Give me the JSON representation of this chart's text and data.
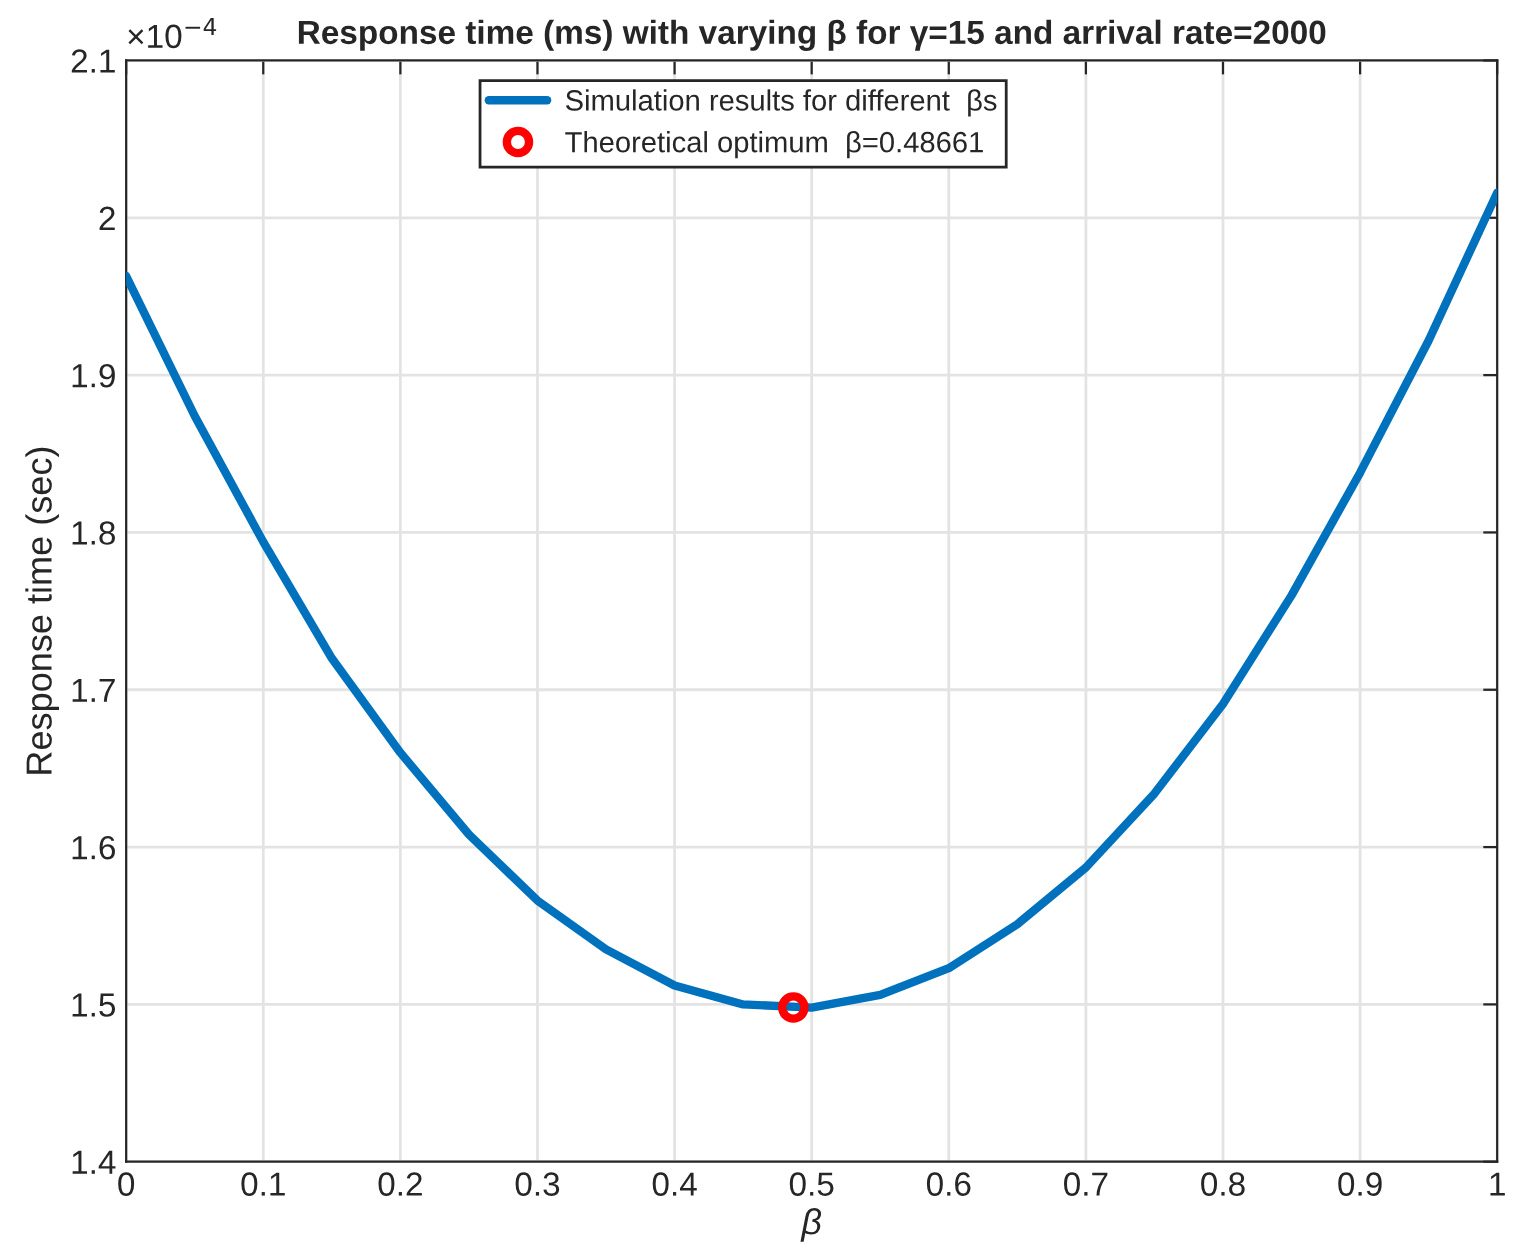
{
  "chart_data": {
    "type": "line",
    "title": "Response time (ms) with varying β for γ=15 and arrival rate=2000",
    "xlabel": "β",
    "ylabel": "Response time (sec)",
    "annotations": [
      "×10$^{−4}$"
    ],
    "series": [
      {
        "name": "Simulation results for different  βs",
        "color": "#0072bd",
        "x": [
          0,
          0.05,
          0.1,
          0.15,
          0.2,
          0.25,
          0.3,
          0.35,
          0.4,
          0.45,
          0.5,
          0.55,
          0.6,
          0.65,
          0.7,
          0.75,
          0.8,
          0.85,
          0.9,
          0.95,
          1
        ],
        "values": [
          1.963,
          1.874,
          1.794,
          1.72,
          1.66,
          1.608,
          1.566,
          1.535,
          1.512,
          1.5,
          1.498,
          1.506,
          1.523,
          1.551,
          1.587,
          1.634,
          1.691,
          1.76,
          1.838,
          1.922,
          2.016
        ]
      },
      {
        "type": "scatter",
        "name": "Theoretical optimum  β=0.48661",
        "color": "#ff0000",
        "marker": "circle",
        "x": [
          0.48661
        ],
        "values": [
          1.498
        ]
      }
    ],
    "xlim": [
      0,
      1
    ],
    "ylim": [
      1.4,
      2.1
    ],
    "xticks": [
      0,
      0.1,
      0.2,
      0.3,
      0.4,
      0.5,
      0.6,
      0.7,
      0.8,
      0.9,
      1
    ],
    "yticks": [
      1.4,
      1.5,
      1.6,
      1.7,
      1.8,
      1.9,
      2,
      2.1
    ],
    "grid": true,
    "legend": "top"
  }
}
